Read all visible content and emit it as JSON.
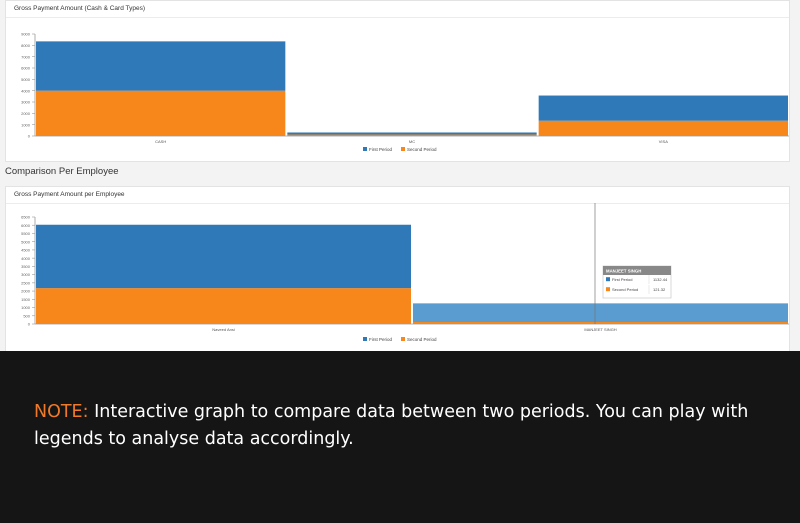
{
  "page": {
    "section_title": "Comparison Per Employee",
    "note_label": "NOTE:",
    "note_text": " Interactive graph to compare data between two periods. You can play with legends to analyse data accordingly."
  },
  "colors": {
    "first_period": "#2f79b8",
    "second_period": "#f7871a",
    "highlight_first": "#5a9bd0",
    "note_accent": "#f07a2a"
  },
  "chart_data": [
    {
      "type": "bar",
      "stacked": true,
      "title": "Gross Payment Amount (Cash & Card Types)",
      "categories": [
        "CASH",
        "MC",
        "VISA"
      ],
      "series": [
        {
          "name": "First Period",
          "values": [
            4350,
            180,
            2220
          ]
        },
        {
          "name": "Second Period",
          "values": [
            4000,
            130,
            1350
          ]
        }
      ],
      "ylim": [
        0,
        9000
      ],
      "yticks": [
        "0",
        "1000",
        "2000",
        "3000",
        "4000",
        "5000",
        "6000",
        "7000",
        "8000",
        "9000"
      ],
      "grid": false,
      "legend": "bottom-center"
    },
    {
      "type": "bar",
      "stacked": true,
      "title": "Gross Payment Amount per Employee",
      "categories": [
        "Naveed Ansi",
        "MANJEET SINGH"
      ],
      "series": [
        {
          "name": "First Period",
          "values": [
            3850,
            1132.44
          ]
        },
        {
          "name": "Second Period",
          "values": [
            2180,
            121.32
          ]
        }
      ],
      "ylim": [
        0,
        6500
      ],
      "yticks": [
        "0",
        "500",
        "1000",
        "1500",
        "2000",
        "2500",
        "3000",
        "3500",
        "4000",
        "4500",
        "5000",
        "5500",
        "6000",
        "6500"
      ],
      "grid": false,
      "legend": "bottom-center",
      "tooltip": {
        "title": "MANJEET SINGH",
        "rows": [
          {
            "label": "First Period",
            "value": "1132.44"
          },
          {
            "label": "Second Period",
            "value": "121.32"
          }
        ]
      }
    }
  ]
}
